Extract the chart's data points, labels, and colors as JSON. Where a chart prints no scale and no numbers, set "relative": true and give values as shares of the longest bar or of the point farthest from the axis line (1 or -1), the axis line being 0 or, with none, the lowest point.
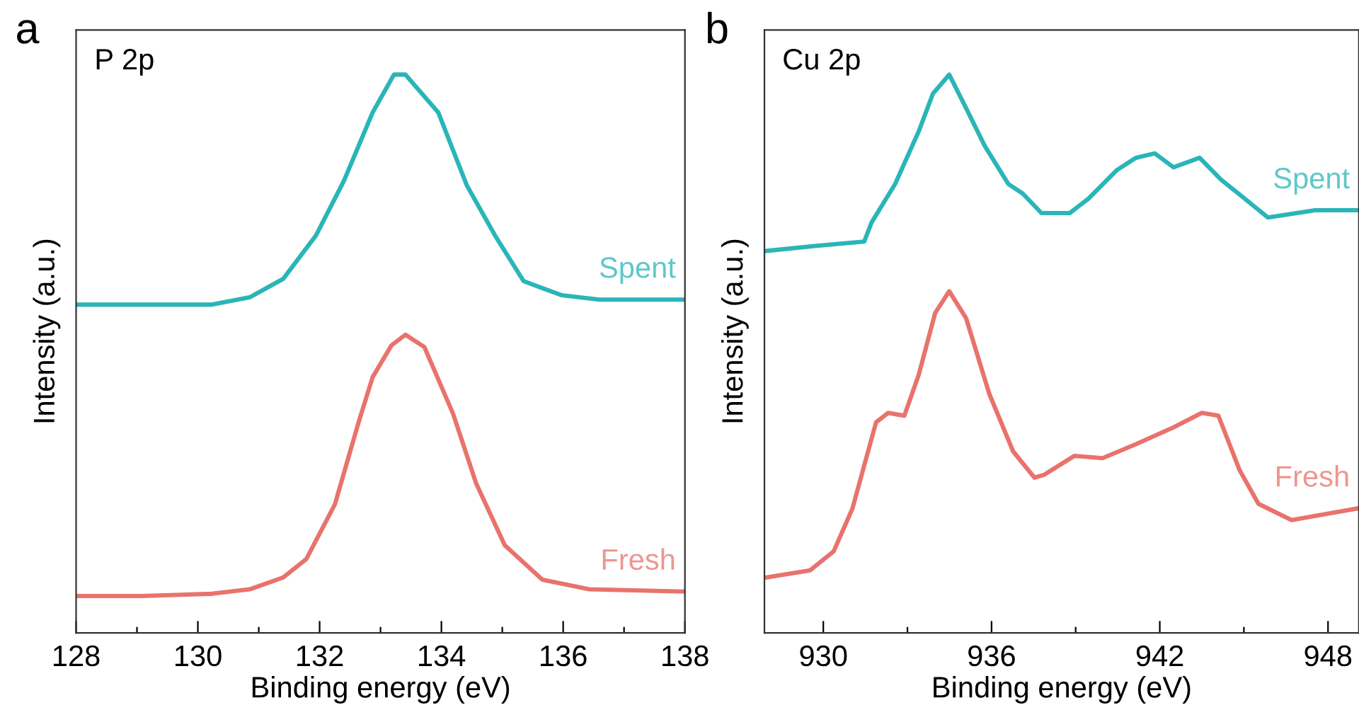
{
  "chart_data": [
    {
      "type": "line",
      "relative": true,
      "xlabel": "Binding energy (eV)",
      "ylabel": "Intensity (a.u.)",
      "annotations": [
        "a",
        "P 2p"
      ],
      "xlim": [
        128,
        138
      ],
      "xticks": [
        128,
        {
          "value": 129,
          "label": null
        },
        130,
        {
          "value": 131,
          "label": null
        },
        132,
        {
          "value": 133,
          "label": null
        },
        134,
        {
          "value": 135,
          "label": null
        },
        136,
        {
          "value": 137,
          "label": null
        },
        138
      ],
      "tick_labels": "x",
      "grid": false,
      "legend": false,
      "series": [
        {
          "name": "Spent",
          "color": "#2ab5b8",
          "x": [
            128.0,
            130.23,
            130.85,
            131.4,
            131.94,
            132.4,
            132.87,
            133.22,
            133.41,
            133.95,
            134.42,
            134.88,
            135.35,
            135.97,
            136.59,
            137.98
          ],
          "values": [
            0.588,
            0.588,
            0.601,
            0.634,
            0.712,
            0.81,
            0.932,
            1,
            1,
            0.932,
            0.801,
            0.712,
            0.63,
            0.605,
            0.597,
            0.597
          ]
        },
        {
          "name": "Fresh",
          "color": "#e8736c",
          "x": [
            128.02,
            129.07,
            130.23,
            130.85,
            131.4,
            131.78,
            132.25,
            132.64,
            132.87,
            133.18,
            133.41,
            133.72,
            134.19,
            134.57,
            135.04,
            135.66,
            136.43,
            137.98
          ],
          "values": [
            0.066,
            0.066,
            0.07,
            0.078,
            0.099,
            0.132,
            0.23,
            0.377,
            0.458,
            0.515,
            0.534,
            0.512,
            0.393,
            0.268,
            0.157,
            0.095,
            0.078,
            0.074
          ]
        }
      ]
    },
    {
      "type": "line",
      "relative": true,
      "xlabel": "Binding energy (eV)",
      "ylabel": "Intensity (a.u.)",
      "annotations": [
        "b",
        "Cu 2p"
      ],
      "xlim": [
        927.9,
        949.1
      ],
      "xticks": [
        930,
        {
          "value": 933,
          "label": null
        },
        936,
        {
          "value": 939,
          "label": null
        },
        942,
        {
          "value": 945,
          "label": null
        },
        948
      ],
      "tick_labels": "x",
      "grid": false,
      "legend": false,
      "series": [
        {
          "name": "Spent",
          "color": "#2ab5b8",
          "x": [
            927.93,
            929.7,
            931.46,
            931.72,
            932.56,
            933.4,
            933.91,
            934.49,
            935.09,
            935.76,
            936.6,
            937.11,
            937.78,
            938.79,
            939.46,
            940.47,
            941.15,
            941.82,
            942.49,
            943.42,
            944.18,
            945.02,
            945.86,
            947.54,
            949.06
          ],
          "values": [
            0.684,
            0.693,
            0.701,
            0.735,
            0.804,
            0.898,
            0.966,
            1,
            0.94,
            0.872,
            0.804,
            0.787,
            0.752,
            0.752,
            0.778,
            0.829,
            0.851,
            0.859,
            0.834,
            0.851,
            0.812,
            0.778,
            0.744,
            0.757,
            0.757
          ]
        },
        {
          "name": "Fresh",
          "color": "#e8736c",
          "x": [
            927.93,
            929.53,
            930.37,
            931.04,
            931.88,
            932.31,
            932.89,
            933.4,
            933.99,
            934.49,
            935.09,
            935.92,
            936.77,
            937.53,
            937.87,
            938.95,
            939.96,
            941.15,
            942.49,
            943.5,
            944.09,
            944.85,
            945.52,
            946.7,
            949.06
          ],
          "values": [
            0.099,
            0.112,
            0.146,
            0.223,
            0.377,
            0.394,
            0.389,
            0.462,
            0.573,
            0.612,
            0.564,
            0.428,
            0.325,
            0.278,
            0.283,
            0.317,
            0.313,
            0.338,
            0.368,
            0.394,
            0.389,
            0.291,
            0.231,
            0.202,
            0.223
          ]
        }
      ]
    }
  ]
}
